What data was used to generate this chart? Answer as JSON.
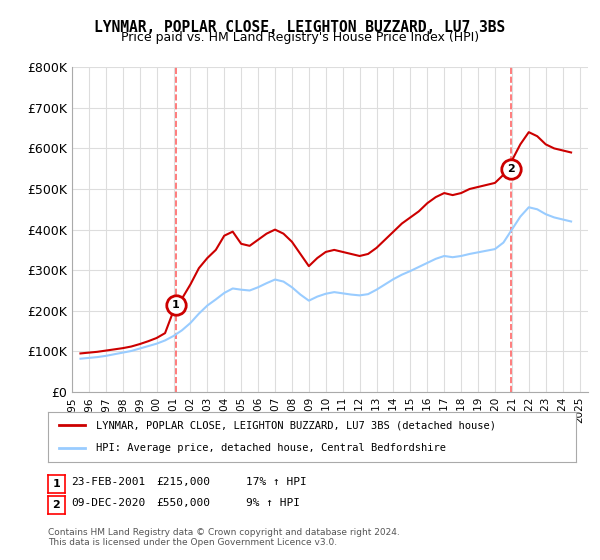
{
  "title": "LYNMAR, POPLAR CLOSE, LEIGHTON BUZZARD, LU7 3BS",
  "subtitle": "Price paid vs. HM Land Registry's House Price Index (HPI)",
  "ylabel": "",
  "xlabel": "",
  "ylim": [
    0,
    800000
  ],
  "yticks": [
    0,
    100000,
    200000,
    300000,
    400000,
    500000,
    600000,
    700000,
    800000
  ],
  "ytick_labels": [
    "£0",
    "£100K",
    "£200K",
    "£300K",
    "£400K",
    "£500K",
    "£600K",
    "£700K",
    "£800K"
  ],
  "xlim_start": 1995.0,
  "xlim_end": 2025.5,
  "sale1_year": 2001.15,
  "sale1_price": 215000,
  "sale1_label": "1",
  "sale1_date": "23-FEB-2001",
  "sale1_amount": "£215,000",
  "sale1_hpi": "17% ↑ HPI",
  "sale2_year": 2020.93,
  "sale2_price": 550000,
  "sale2_label": "2",
  "sale2_date": "09-DEC-2020",
  "sale2_amount": "£550,000",
  "sale2_hpi": "9% ↑ HPI",
  "line_color_house": "#cc0000",
  "line_color_hpi": "#99ccff",
  "vline_color": "#ff6666",
  "background_color": "#ffffff",
  "grid_color": "#dddddd",
  "legend_label_house": "LYNMAR, POPLAR CLOSE, LEIGHTON BUZZARD, LU7 3BS (detached house)",
  "legend_label_hpi": "HPI: Average price, detached house, Central Bedfordshire",
  "footnote": "Contains HM Land Registry data © Crown copyright and database right 2024.\nThis data is licensed under the Open Government Licence v3.0.",
  "house_price_data": {
    "years": [
      1995.5,
      1996.0,
      1996.5,
      1997.0,
      1997.5,
      1998.0,
      1998.5,
      1999.0,
      1999.5,
      2000.0,
      2000.5,
      2001.0,
      2001.15,
      2001.5,
      2002.0,
      2002.5,
      2003.0,
      2003.5,
      2004.0,
      2004.5,
      2005.0,
      2005.5,
      2006.0,
      2006.5,
      2007.0,
      2007.5,
      2008.0,
      2008.5,
      2009.0,
      2009.5,
      2010.0,
      2010.5,
      2011.0,
      2011.5,
      2012.0,
      2012.5,
      2013.0,
      2013.5,
      2014.0,
      2014.5,
      2015.0,
      2015.5,
      2016.0,
      2016.5,
      2017.0,
      2017.5,
      2018.0,
      2018.5,
      2019.0,
      2019.5,
      2020.0,
      2020.5,
      2020.93,
      2021.0,
      2021.5,
      2022.0,
      2022.5,
      2023.0,
      2023.5,
      2024.0,
      2024.5
    ],
    "prices": [
      95000,
      97000,
      99000,
      102000,
      105000,
      108000,
      112000,
      118000,
      125000,
      133000,
      145000,
      200000,
      215000,
      230000,
      265000,
      305000,
      330000,
      350000,
      385000,
      395000,
      365000,
      360000,
      375000,
      390000,
      400000,
      390000,
      370000,
      340000,
      310000,
      330000,
      345000,
      350000,
      345000,
      340000,
      335000,
      340000,
      355000,
      375000,
      395000,
      415000,
      430000,
      445000,
      465000,
      480000,
      490000,
      485000,
      490000,
      500000,
      505000,
      510000,
      515000,
      535000,
      550000,
      570000,
      610000,
      640000,
      630000,
      610000,
      600000,
      595000,
      590000
    ]
  },
  "hpi_data": {
    "years": [
      1995.5,
      1996.0,
      1996.5,
      1997.0,
      1997.5,
      1998.0,
      1998.5,
      1999.0,
      1999.5,
      2000.0,
      2000.5,
      2001.0,
      2001.5,
      2002.0,
      2002.5,
      2003.0,
      2003.5,
      2004.0,
      2004.5,
      2005.0,
      2005.5,
      2006.0,
      2006.5,
      2007.0,
      2007.5,
      2008.0,
      2008.5,
      2009.0,
      2009.5,
      2010.0,
      2010.5,
      2011.0,
      2011.5,
      2012.0,
      2012.5,
      2013.0,
      2013.5,
      2014.0,
      2014.5,
      2015.0,
      2015.5,
      2016.0,
      2016.5,
      2017.0,
      2017.5,
      2018.0,
      2018.5,
      2019.0,
      2019.5,
      2020.0,
      2020.5,
      2021.0,
      2021.5,
      2022.0,
      2022.5,
      2023.0,
      2023.5,
      2024.0,
      2024.5
    ],
    "prices": [
      82000,
      84000,
      86000,
      89000,
      93000,
      97000,
      101000,
      107000,
      113000,
      119000,
      127000,
      138000,
      152000,
      170000,
      193000,
      213000,
      228000,
      244000,
      255000,
      252000,
      250000,
      258000,
      268000,
      277000,
      272000,
      258000,
      240000,
      225000,
      235000,
      242000,
      246000,
      243000,
      240000,
      238000,
      241000,
      252000,
      265000,
      278000,
      289000,
      298000,
      308000,
      318000,
      328000,
      335000,
      332000,
      335000,
      340000,
      344000,
      348000,
      352000,
      368000,
      400000,
      432000,
      455000,
      450000,
      438000,
      430000,
      425000,
      420000
    ]
  }
}
